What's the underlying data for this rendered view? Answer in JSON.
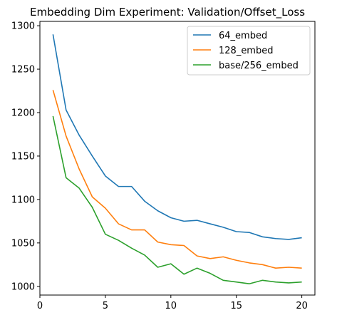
{
  "chart_data": {
    "type": "line",
    "title": "Embedding Dim Experiment: Validation/Offset_Loss",
    "xlabel": "",
    "ylabel": "",
    "x": [
      1,
      2,
      3,
      4,
      5,
      6,
      7,
      8,
      9,
      10,
      11,
      12,
      13,
      14,
      15,
      16,
      17,
      18,
      19,
      20
    ],
    "xlim": [
      0,
      21
    ],
    "ylim": [
      990,
      1305
    ],
    "xticks": [
      0,
      5,
      10,
      15,
      20
    ],
    "yticks": [
      1000,
      1050,
      1100,
      1150,
      1200,
      1250,
      1300
    ],
    "grid": false,
    "legend_position": "top-right",
    "series": [
      {
        "name": "64_embed",
        "color": "#1f77b4",
        "values": [
          1290,
          1203,
          1174,
          1150,
          1127,
          1115,
          1115,
          1098,
          1087,
          1079,
          1075,
          1076,
          1072,
          1068,
          1063,
          1062,
          1057,
          1055,
          1054,
          1056
        ]
      },
      {
        "name": "128_embed",
        "color": "#ff7f0e",
        "values": [
          1226,
          1173,
          1135,
          1103,
          1090,
          1072,
          1065,
          1065,
          1051,
          1048,
          1047,
          1035,
          1032,
          1034,
          1030,
          1027,
          1025,
          1021,
          1022,
          1021
        ]
      },
      {
        "name": "base/256_embed",
        "color": "#2ca02c",
        "values": [
          1196,
          1125,
          1113,
          1091,
          1060,
          1053,
          1044,
          1036,
          1022,
          1026,
          1014,
          1021,
          1015,
          1007,
          1005,
          1003,
          1007,
          1005,
          1004,
          1005
        ]
      }
    ]
  }
}
